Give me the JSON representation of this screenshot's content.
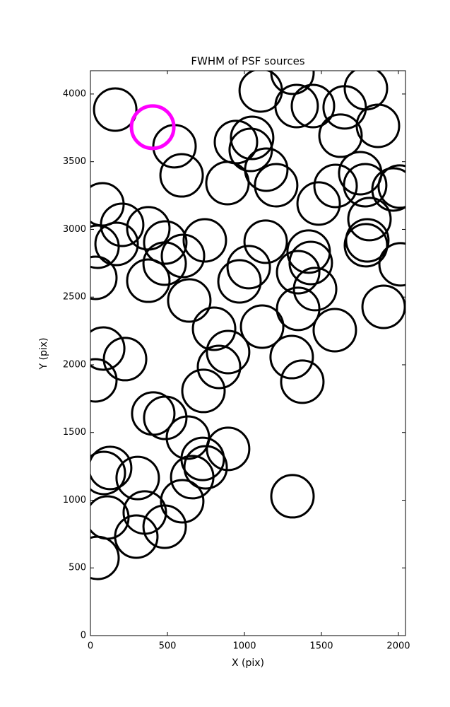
{
  "chart_data": {
    "type": "scatter",
    "title": "FWHM of PSF sources",
    "xlabel": "X (pix)",
    "ylabel": "Y (pix)",
    "xlim": [
      0,
      2046
    ],
    "ylim": [
      0,
      4172
    ],
    "xticks": [
      0,
      500,
      1000,
      1500,
      2000
    ],
    "yticks": [
      0,
      500,
      1000,
      1500,
      2000,
      2500,
      3000,
      3500,
      4000
    ],
    "series": [
      {
        "color": "#000000",
        "x": [
          161,
          546,
          592,
          78,
          206,
          46,
          170,
          376,
          486,
          601,
          482,
          376,
          32,
          743,
          642,
          803,
          894,
          835,
          734,
          83,
          225,
          32,
          408,
          486,
          633,
          894,
          729,
          748,
          661,
          596,
          128,
          87,
          307,
          353,
          482,
          298,
          110,
          46,
          890,
          945,
          1050,
          1041,
          1142,
          1206,
          1106,
          1312,
          1339,
          1445,
          1651,
          1789,
          1867,
          1624,
          1752,
          1784,
          1592,
          1482,
          1968,
          2009,
          1812,
          1798,
          1789,
          2014,
          1138,
          1028,
          968,
          1417,
          1431,
          1349,
          1459,
          1349,
          1115,
          1587,
          1904,
          1307,
          1376,
          1312
        ],
        "y": [
          3885,
          3614,
          3399,
          3185,
          3034,
          2872,
          2893,
          3008,
          2903,
          2804,
          2747,
          2621,
          2642,
          2919,
          2475,
          2266,
          2094,
          1984,
          1807,
          2120,
          2042,
          1885,
          1640,
          1608,
          1462,
          1379,
          1305,
          1243,
          1170,
          992,
          1238,
          1201,
          1164,
          909,
          804,
          731,
          872,
          574,
          3342,
          3645,
          3676,
          3587,
          3441,
          3326,
          4026,
          4157,
          3911,
          3911,
          3901,
          4042,
          3765,
          3692,
          3415,
          3326,
          3321,
          3191,
          3295,
          3316,
          3076,
          2919,
          2883,
          2742,
          2909,
          2721,
          2616,
          2836,
          2752,
          2684,
          2559,
          2413,
          2282,
          2256,
          2428,
          2057,
          1875,
          1029
        ]
      },
      {
        "color": "#ff00ff",
        "x": [
          404
        ],
        "y": [
          3755
        ]
      }
    ]
  }
}
